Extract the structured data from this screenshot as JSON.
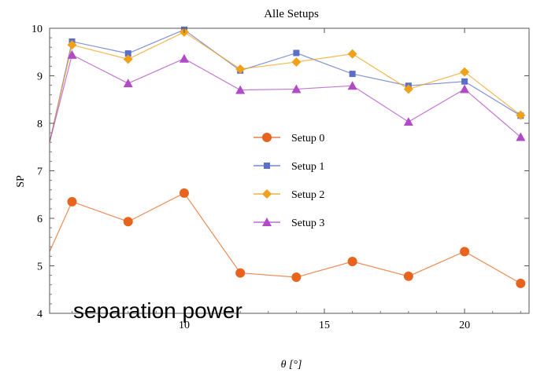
{
  "chart_data": {
    "type": "line",
    "title": "Alle Setups",
    "xlabel": "θ [°]",
    "ylabel": "SP",
    "xlim": [
      5.2,
      22.3
    ],
    "ylim": [
      4,
      10
    ],
    "x_ticks": [
      10,
      15,
      20
    ],
    "y_ticks": [
      4,
      5,
      6,
      7,
      8,
      9,
      10
    ],
    "grid": false,
    "legend_position": "center-right",
    "annotation": "separation power",
    "series": [
      {
        "name": "Setup 0",
        "color": "#e8641e",
        "marker": "circle",
        "points": [
          [
            5.2,
            5.3
          ],
          [
            6,
            6.35
          ],
          [
            8,
            5.93
          ],
          [
            10,
            6.53
          ],
          [
            12,
            4.85
          ],
          [
            14,
            4.76
          ],
          [
            16,
            5.09
          ],
          [
            18,
            4.78
          ],
          [
            20,
            5.3
          ],
          [
            22,
            4.63
          ]
        ]
      },
      {
        "name": "Setup 1",
        "color": "#5b6fc8",
        "marker": "square",
        "points": [
          [
            5.2,
            7.6
          ],
          [
            6,
            9.72
          ],
          [
            8,
            9.47
          ],
          [
            10,
            9.97
          ],
          [
            12,
            9.11
          ],
          [
            14,
            9.48
          ],
          [
            16,
            9.04
          ],
          [
            18,
            8.79
          ],
          [
            20,
            8.88
          ],
          [
            22,
            8.16
          ]
        ]
      },
      {
        "name": "Setup 2",
        "color": "#f0a11a",
        "marker": "diamond",
        "points": [
          [
            5.2,
            7.6
          ],
          [
            6,
            9.65
          ],
          [
            8,
            9.35
          ],
          [
            10,
            9.92
          ],
          [
            12,
            9.14
          ],
          [
            14,
            9.29
          ],
          [
            16,
            9.46
          ],
          [
            18,
            8.72
          ],
          [
            20,
            9.08
          ],
          [
            22,
            8.17
          ]
        ]
      },
      {
        "name": "Setup 3",
        "color": "#b04ac6",
        "marker": "triangle",
        "points": [
          [
            5.2,
            7.6
          ],
          [
            6,
            9.44
          ],
          [
            8,
            8.84
          ],
          [
            10,
            9.36
          ],
          [
            12,
            8.7
          ],
          [
            14,
            8.72
          ],
          [
            16,
            8.79
          ],
          [
            18,
            8.03
          ],
          [
            20,
            8.72
          ],
          [
            22,
            7.71
          ]
        ]
      }
    ]
  }
}
